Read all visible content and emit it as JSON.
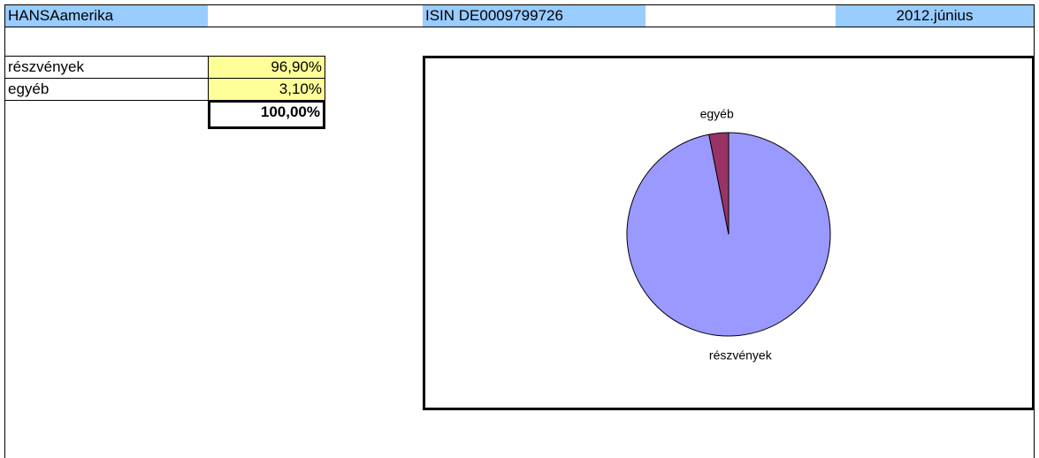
{
  "header": {
    "fund": "HANSAamerika",
    "isin": "ISIN DE0009799726",
    "date": "2012.június"
  },
  "table": {
    "rows": [
      [
        "részvények",
        "96,90%"
      ],
      [
        "egyéb",
        "3,10%"
      ]
    ],
    "total": "100,00%"
  },
  "chart_data": {
    "type": "pie",
    "categories": [
      "részvények",
      "egyéb"
    ],
    "values": [
      96.9,
      3.1
    ],
    "colors": [
      "#9999ff",
      "#993366"
    ]
  }
}
